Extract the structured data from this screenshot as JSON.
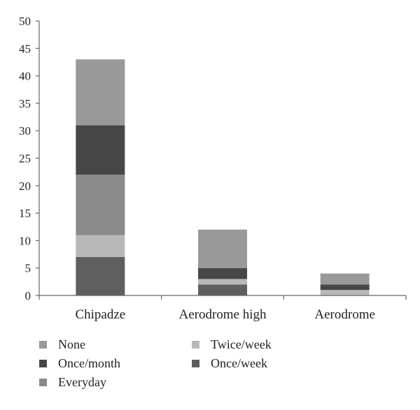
{
  "chart_data": {
    "type": "bar",
    "stacked": true,
    "categories": [
      "Chipadze",
      "Aerodrome high",
      "Aerodrome"
    ],
    "series": [
      {
        "name": "Once/week",
        "values": [
          7,
          2,
          0
        ],
        "color": "#5f5f5f"
      },
      {
        "name": "Twice/week",
        "values": [
          4,
          1,
          1
        ],
        "color": "#b8b8b8"
      },
      {
        "name": "Everyday",
        "values": [
          11,
          0,
          0
        ],
        "color": "#8a8a8a"
      },
      {
        "name": "Once/month",
        "values": [
          9,
          2,
          1
        ],
        "color": "#474747"
      },
      {
        "name": "None",
        "values": [
          12,
          7,
          2
        ],
        "color": "#999999"
      }
    ],
    "ylim": [
      0,
      50
    ],
    "yticks": [
      "0",
      "5",
      "10",
      "15",
      "20",
      "25",
      "30",
      "35",
      "40",
      "45",
      "50"
    ],
    "legend": {
      "position": "bottom",
      "items": [
        "None",
        "Twice/week",
        "Once/month",
        "Once/week",
        "Everyday"
      ]
    },
    "grid": false
  }
}
